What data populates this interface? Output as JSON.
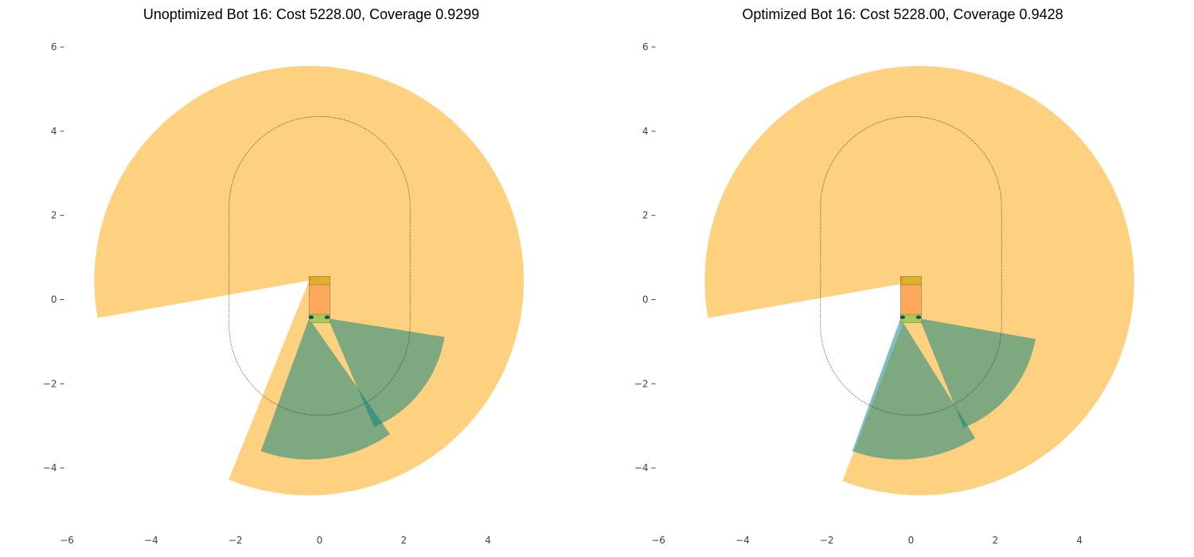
{
  "figure": {
    "background": "#ffffff",
    "colors": {
      "camera_fov": "#fdc55f",
      "lidar_fov": "#008080",
      "bot_body": "#ffa85c",
      "bot_front": "#ddb12c",
      "bot_rear": "#a8c95a",
      "sensor_marker": "#005a4a",
      "camera_marker": "#f0a000",
      "path": "#333333"
    }
  },
  "chart_data": [
    {
      "type": "scatter",
      "title": "Unoptimized Bot 16: Cost 5228.00, Coverage 0.9299",
      "xlabel": "",
      "ylabel": "",
      "xlim": [
        -6,
        6
      ],
      "ylim": [
        -6,
        6
      ],
      "xticks": [
        -6,
        -4,
        -2,
        0,
        2,
        4
      ],
      "yticks": [
        -4,
        -2,
        0,
        2,
        4,
        6
      ],
      "xtick_labels": [
        "−6",
        "−4",
        "−2",
        "0",
        "2",
        "4"
      ],
      "ytick_labels": [
        "−4",
        "−2",
        "0",
        "2",
        "4",
        "6"
      ],
      "grid": false,
      "aspect": "equal",
      "cost": 5228.0,
      "coverage": 0.9299,
      "sensors": [
        {
          "name": "camera",
          "kind": "camera",
          "origin": [
            -0.25,
            0.45
          ],
          "radius": 5.1,
          "start_deg": -112,
          "end_deg": 190
        },
        {
          "name": "lidar_left",
          "kind": "lidar",
          "origin": [
            -0.25,
            -0.45
          ],
          "radius": 3.35,
          "start_deg": -110,
          "end_deg": -55
        },
        {
          "name": "lidar_right",
          "kind": "lidar",
          "origin": [
            0.2,
            -0.45
          ],
          "radius": 2.8,
          "start_deg": -67,
          "end_deg": -9
        }
      ],
      "bot": {
        "body": {
          "x": [
            -0.25,
            0.25
          ],
          "y": [
            -0.45,
            0.55
          ]
        },
        "front_band": {
          "x": [
            -0.25,
            0.25
          ],
          "y": [
            0.35,
            0.55
          ]
        },
        "rear_band": {
          "x": [
            -0.25,
            0.25
          ],
          "y": [
            -0.55,
            -0.35
          ]
        },
        "markers": [
          [
            -0.2,
            -0.42
          ],
          [
            0.18,
            -0.42
          ]
        ],
        "camera_marker": [
          -0.2,
          0.48
        ]
      },
      "path": {
        "x": [
          -2.15,
          2.15
        ],
        "y": [
          -2.75,
          4.35
        ],
        "corner_radius": 2.15
      }
    },
    {
      "type": "scatter",
      "title": "Optimized Bot 16: Cost 5228.00, Coverage 0.9428",
      "xlabel": "",
      "ylabel": "",
      "xlim": [
        -6,
        6
      ],
      "ylim": [
        -6,
        6
      ],
      "xticks": [
        -6,
        -4,
        -2,
        0,
        2,
        4
      ],
      "yticks": [
        -4,
        -2,
        0,
        2,
        4,
        6
      ],
      "xtick_labels": [
        "−6",
        "−4",
        "−2",
        "0",
        "2",
        "4"
      ],
      "ytick_labels": [
        "−4",
        "−2",
        "0",
        "2",
        "4",
        "6"
      ],
      "grid": false,
      "aspect": "equal",
      "cost": 5228.0,
      "coverage": 0.9428,
      "sensors": [
        {
          "name": "camera",
          "kind": "camera",
          "origin": [
            0.2,
            0.45
          ],
          "radius": 5.1,
          "start_deg": -111,
          "end_deg": 190
        },
        {
          "name": "lidar_left",
          "kind": "lidar",
          "origin": [
            -0.25,
            -0.45
          ],
          "radius": 3.35,
          "start_deg": -110,
          "end_deg": -58
        },
        {
          "name": "lidar_right",
          "kind": "lidar",
          "origin": [
            0.2,
            -0.45
          ],
          "radius": 2.8,
          "start_deg": -68,
          "end_deg": -10
        }
      ],
      "bot": {
        "body": {
          "x": [
            -0.25,
            0.25
          ],
          "y": [
            -0.45,
            0.55
          ]
        },
        "front_band": {
          "x": [
            -0.25,
            0.25
          ],
          "y": [
            0.35,
            0.55
          ]
        },
        "rear_band": {
          "x": [
            -0.25,
            0.25
          ],
          "y": [
            -0.55,
            -0.35
          ]
        },
        "markers": [
          [
            -0.2,
            -0.42
          ],
          [
            0.18,
            -0.42
          ]
        ],
        "camera_marker": [
          -0.2,
          0.48
        ]
      },
      "path": {
        "x": [
          -2.15,
          2.15
        ],
        "y": [
          -2.75,
          4.35
        ],
        "corner_radius": 2.15
      }
    }
  ]
}
